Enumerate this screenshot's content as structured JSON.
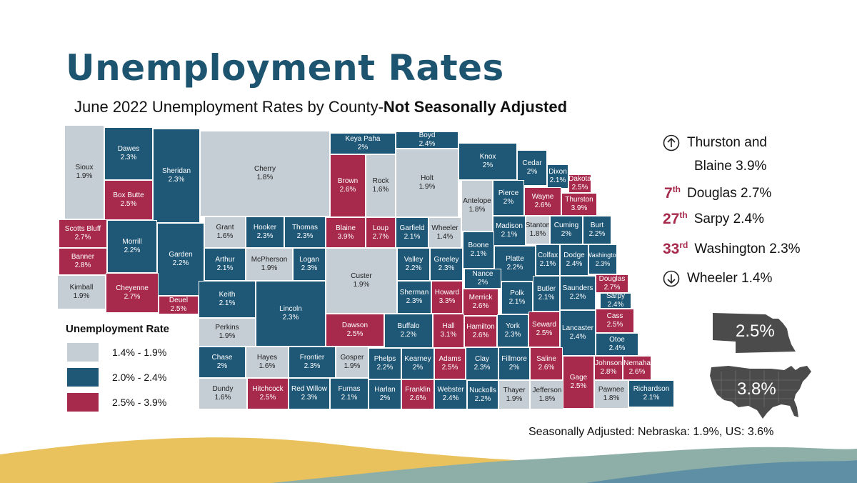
{
  "header": {
    "title": "Unemployment Rates",
    "subtitle_main": "June 2022 Unemployment Rates by County-",
    "subtitle_bold": "Not Seasonally Adjusted"
  },
  "colors": {
    "low": "#c5cdd5",
    "mid": "#1f5877",
    "high": "#a72a4c",
    "title": "#1d5470"
  },
  "legend": {
    "title": "Unemployment Rate",
    "items": [
      {
        "range": "1.4% - 1.9%",
        "color": "#c5cdd5"
      },
      {
        "range": "2.0% - 2.4%",
        "color": "#1f5877"
      },
      {
        "range": "2.5% - 3.9%",
        "color": "#a72a4c"
      }
    ]
  },
  "highlights": {
    "top": "Thurston and",
    "top2": "Blaine 3.9%",
    "r1": {
      "rank": "7",
      "suffix": "th",
      "text": "Douglas 2.7%"
    },
    "r2": {
      "rank": "27",
      "suffix": "th",
      "text": "Sarpy 2.4%"
    },
    "r3": {
      "rank": "33",
      "suffix": "rd",
      "text": "Washington 2.3%"
    },
    "low": "Wheeler 1.4%"
  },
  "overlays": {
    "nebraska": "2.5%",
    "us": "3.8%"
  },
  "note": "Seasonally Adjusted: Nebraska: 1.9%, US: 3.6%",
  "counties": [
    {
      "id": "sioux",
      "name": "Sioux",
      "rate": "1.9%"
    },
    {
      "id": "dawes",
      "name": "Dawes",
      "rate": "2.3%"
    },
    {
      "id": "sheridan",
      "name": "Sheridan",
      "rate": "2.3%"
    },
    {
      "id": "cherry",
      "name": "Cherry",
      "rate": "1.8%"
    },
    {
      "id": "keya-paha",
      "name": "Keya Paha",
      "rate": "2%"
    },
    {
      "id": "boyd",
      "name": "Boyd",
      "rate": "2.4%"
    },
    {
      "id": "brown",
      "name": "Brown",
      "rate": "2.6%"
    },
    {
      "id": "rock",
      "name": "Rock",
      "rate": "1.6%"
    },
    {
      "id": "holt",
      "name": "Holt",
      "rate": "1.9%"
    },
    {
      "id": "knox",
      "name": "Knox",
      "rate": "2%"
    },
    {
      "id": "cedar",
      "name": "Cedar",
      "rate": "2%"
    },
    {
      "id": "dixon",
      "name": "Dixon",
      "rate": "2.1%"
    },
    {
      "id": "dakota",
      "name": "Dakota",
      "rate": "2.5%"
    },
    {
      "id": "box-butte",
      "name": "Box Butte",
      "rate": "2.5%"
    },
    {
      "id": "scotts-bluff",
      "name": "Scotts Bluff",
      "rate": "2.7%"
    },
    {
      "id": "morrill",
      "name": "Morrill",
      "rate": "2.2%"
    },
    {
      "id": "garden",
      "name": "Garden",
      "rate": "2.2%"
    },
    {
      "id": "banner",
      "name": "Banner",
      "rate": "2.8%"
    },
    {
      "id": "kimball",
      "name": "Kimball",
      "rate": "1.9%"
    },
    {
      "id": "cheyenne",
      "name": "Cheyenne",
      "rate": "2.7%"
    },
    {
      "id": "deuel",
      "name": "Deuel",
      "rate": "2.5%"
    },
    {
      "id": "grant",
      "name": "Grant",
      "rate": "1.6%"
    },
    {
      "id": "hooker",
      "name": "Hooker",
      "rate": "2.3%"
    },
    {
      "id": "thomas",
      "name": "Thomas",
      "rate": "2.3%"
    },
    {
      "id": "blaine",
      "name": "Blaine",
      "rate": "3.9%"
    },
    {
      "id": "loup",
      "name": "Loup",
      "rate": "2.7%"
    },
    {
      "id": "garfield",
      "name": "Garfield",
      "rate": "2.1%"
    },
    {
      "id": "wheeler",
      "name": "Wheeler",
      "rate": "1.4%"
    },
    {
      "id": "antelope",
      "name": "Antelope",
      "rate": "1.8%"
    },
    {
      "id": "pierce",
      "name": "Pierce",
      "rate": "2%"
    },
    {
      "id": "wayne",
      "name": "Wayne",
      "rate": "2.6%"
    },
    {
      "id": "thurston",
      "name": "Thurston",
      "rate": "3.9%"
    },
    {
      "id": "madison",
      "name": "Madison",
      "rate": "2.1%"
    },
    {
      "id": "stanton",
      "name": "Stanton",
      "rate": "1.8%"
    },
    {
      "id": "cuming",
      "name": "Cuming",
      "rate": "2%"
    },
    {
      "id": "burt",
      "name": "Burt",
      "rate": "2.2%"
    },
    {
      "id": "arthur",
      "name": "Arthur",
      "rate": "2.1%"
    },
    {
      "id": "mcpherson",
      "name": "McPherson",
      "rate": "1.9%"
    },
    {
      "id": "logan",
      "name": "Logan",
      "rate": "2.3%"
    },
    {
      "id": "custer",
      "name": "Custer",
      "rate": "1.9%"
    },
    {
      "id": "valley",
      "name": "Valley",
      "rate": "2.2%"
    },
    {
      "id": "greeley",
      "name": "Greeley",
      "rate": "2.3%"
    },
    {
      "id": "boone",
      "name": "Boone",
      "rate": "2.1%"
    },
    {
      "id": "platte",
      "name": "Platte",
      "rate": "2.2%"
    },
    {
      "id": "colfax",
      "name": "Colfax",
      "rate": "2.1%"
    },
    {
      "id": "dodge",
      "name": "Dodge",
      "rate": "2.4%"
    },
    {
      "id": "washington",
      "name": "Washington",
      "rate": "2.3%"
    },
    {
      "id": "nance",
      "name": "Nance",
      "rate": "2%"
    },
    {
      "id": "keith",
      "name": "Keith",
      "rate": "2.1%"
    },
    {
      "id": "lincoln",
      "name": "Lincoln",
      "rate": "2.3%"
    },
    {
      "id": "sherman",
      "name": "Sherman",
      "rate": "2.3%"
    },
    {
      "id": "howard",
      "name": "Howard",
      "rate": "3.3%"
    },
    {
      "id": "merrick",
      "name": "Merrick",
      "rate": "2.6%"
    },
    {
      "id": "polk",
      "name": "Polk",
      "rate": "2.1%"
    },
    {
      "id": "butler",
      "name": "Butler",
      "rate": "2.1%"
    },
    {
      "id": "saunders",
      "name": "Saunders",
      "rate": "2.2%"
    },
    {
      "id": "douglas",
      "name": "Douglas",
      "rate": "2.7%"
    },
    {
      "id": "sarpy",
      "name": "Sarpy",
      "rate": "2.4%"
    },
    {
      "id": "perkins",
      "name": "Perkins",
      "rate": "1.9%"
    },
    {
      "id": "dawson",
      "name": "Dawson",
      "rate": "2.5%"
    },
    {
      "id": "buffalo",
      "name": "Buffalo",
      "rate": "2.2%"
    },
    {
      "id": "hall",
      "name": "Hall",
      "rate": "3.1%"
    },
    {
      "id": "hamilton",
      "name": "Hamilton",
      "rate": "2.6%"
    },
    {
      "id": "york",
      "name": "York",
      "rate": "2.3%"
    },
    {
      "id": "seward",
      "name": "Seward",
      "rate": "2.5%"
    },
    {
      "id": "lancaster",
      "name": "Lancaster",
      "rate": "2.4%"
    },
    {
      "id": "cass",
      "name": "Cass",
      "rate": "2.5%"
    },
    {
      "id": "otoe",
      "name": "Otoe",
      "rate": "2.4%"
    },
    {
      "id": "chase",
      "name": "Chase",
      "rate": "2%"
    },
    {
      "id": "hayes",
      "name": "Hayes",
      "rate": "1.6%"
    },
    {
      "id": "frontier",
      "name": "Frontier",
      "rate": "2.3%"
    },
    {
      "id": "gosper",
      "name": "Gosper",
      "rate": "1.9%"
    },
    {
      "id": "phelps",
      "name": "Phelps",
      "rate": "2.2%"
    },
    {
      "id": "kearney",
      "name": "Kearney",
      "rate": "2%"
    },
    {
      "id": "adams",
      "name": "Adams",
      "rate": "2.5%"
    },
    {
      "id": "clay",
      "name": "Clay",
      "rate": "2.3%"
    },
    {
      "id": "fillmore",
      "name": "Fillmore",
      "rate": "2%"
    },
    {
      "id": "saline",
      "name": "Saline",
      "rate": "2.6%"
    },
    {
      "id": "johnson",
      "name": "Johnson",
      "rate": "2.8%"
    },
    {
      "id": "nemaha",
      "name": "Nemaha",
      "rate": "2.6%"
    },
    {
      "id": "dundy",
      "name": "Dundy",
      "rate": "1.6%"
    },
    {
      "id": "hitchcock",
      "name": "Hitchcock",
      "rate": "2.5%"
    },
    {
      "id": "red-willow",
      "name": "Red Willow",
      "rate": "2.3%"
    },
    {
      "id": "furnas",
      "name": "Furnas",
      "rate": "2.1%"
    },
    {
      "id": "harlan",
      "name": "Harlan",
      "rate": "2%"
    },
    {
      "id": "franklin",
      "name": "Franklin",
      "rate": "2.6%"
    },
    {
      "id": "webster",
      "name": "Webster",
      "rate": "2.4%"
    },
    {
      "id": "nuckolls",
      "name": "Nuckolls",
      "rate": "2.2%"
    },
    {
      "id": "thayer",
      "name": "Thayer",
      "rate": "1.9%"
    },
    {
      "id": "jefferson",
      "name": "Jefferson",
      "rate": "1.8%"
    },
    {
      "id": "gage",
      "name": "Gage",
      "rate": "2.5%"
    },
    {
      "id": "pawnee",
      "name": "Pawnee",
      "rate": "1.8%"
    },
    {
      "id": "richardson",
      "name": "Richardson",
      "rate": "2.1%"
    }
  ]
}
